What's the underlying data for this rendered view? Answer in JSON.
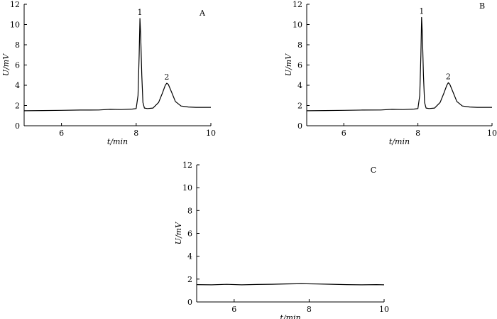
{
  "chart_data": [
    {
      "type": "line",
      "panel_label": "A",
      "xlabel": "t/min",
      "ylabel": "U/mV",
      "xlim": [
        5,
        10
      ],
      "ylim": [
        0,
        12
      ],
      "xticks": [
        6,
        8,
        10
      ],
      "yticks": [
        0,
        2,
        4,
        6,
        8,
        10,
        12
      ],
      "grid": false,
      "series": [
        {
          "x": [
            5.0,
            5.5,
            6.0,
            6.5,
            7.0,
            7.3,
            7.6,
            7.9,
            8.0,
            8.05,
            8.08,
            8.1,
            8.12,
            8.15,
            8.18,
            8.22,
            8.3,
            8.45,
            8.6,
            8.7,
            8.78,
            8.82,
            8.86,
            8.95,
            9.05,
            9.2,
            9.4,
            9.6,
            10.0
          ],
          "y": [
            1.48,
            1.5,
            1.52,
            1.55,
            1.56,
            1.62,
            1.6,
            1.65,
            1.7,
            3.0,
            7.0,
            10.6,
            9.0,
            5.0,
            2.3,
            1.75,
            1.7,
            1.75,
            2.3,
            3.2,
            4.0,
            4.2,
            4.1,
            3.3,
            2.4,
            1.95,
            1.85,
            1.82,
            1.82
          ]
        }
      ],
      "annotations": [
        {
          "text": "1",
          "x": 8.1,
          "y": 10.6
        },
        {
          "text": "2",
          "x": 8.82,
          "y": 4.2
        }
      ]
    },
    {
      "type": "line",
      "panel_label": "B",
      "xlabel": "t/min",
      "ylabel": "U/mV",
      "xlim": [
        5,
        10
      ],
      "ylim": [
        0,
        12
      ],
      "xticks": [
        6,
        8,
        10
      ],
      "yticks": [
        0,
        2,
        4,
        6,
        8,
        10,
        12
      ],
      "grid": false,
      "series": [
        {
          "x": [
            5.0,
            5.5,
            6.0,
            6.5,
            7.0,
            7.3,
            7.6,
            7.9,
            8.0,
            8.05,
            8.08,
            8.1,
            8.12,
            8.15,
            8.18,
            8.22,
            8.3,
            8.45,
            8.6,
            8.7,
            8.78,
            8.82,
            8.86,
            8.95,
            9.05,
            9.2,
            9.4,
            9.6,
            10.0
          ],
          "y": [
            1.48,
            1.5,
            1.52,
            1.55,
            1.56,
            1.62,
            1.6,
            1.65,
            1.7,
            3.0,
            7.0,
            10.7,
            9.0,
            5.0,
            2.3,
            1.75,
            1.7,
            1.75,
            2.3,
            3.2,
            4.0,
            4.25,
            4.1,
            3.3,
            2.4,
            1.95,
            1.85,
            1.82,
            1.82
          ]
        }
      ],
      "annotations": [
        {
          "text": "1",
          "x": 8.1,
          "y": 10.7
        },
        {
          "text": "2",
          "x": 8.82,
          "y": 4.25
        }
      ]
    },
    {
      "type": "line",
      "panel_label": "C",
      "xlabel": "t/min",
      "ylabel": "U/mV",
      "xlim": [
        5,
        10
      ],
      "ylim": [
        0,
        12
      ],
      "xticks": [
        6,
        8,
        10
      ],
      "yticks": [
        0,
        2,
        4,
        6,
        8,
        10,
        12
      ],
      "grid": false,
      "series": [
        {
          "x": [
            5.0,
            5.4,
            5.8,
            6.2,
            6.6,
            7.0,
            7.4,
            7.8,
            8.2,
            8.6,
            9.0,
            9.4,
            9.8,
            10.0
          ],
          "y": [
            1.52,
            1.5,
            1.54,
            1.5,
            1.53,
            1.55,
            1.58,
            1.6,
            1.57,
            1.55,
            1.52,
            1.5,
            1.52,
            1.5
          ]
        }
      ],
      "annotations": []
    }
  ]
}
